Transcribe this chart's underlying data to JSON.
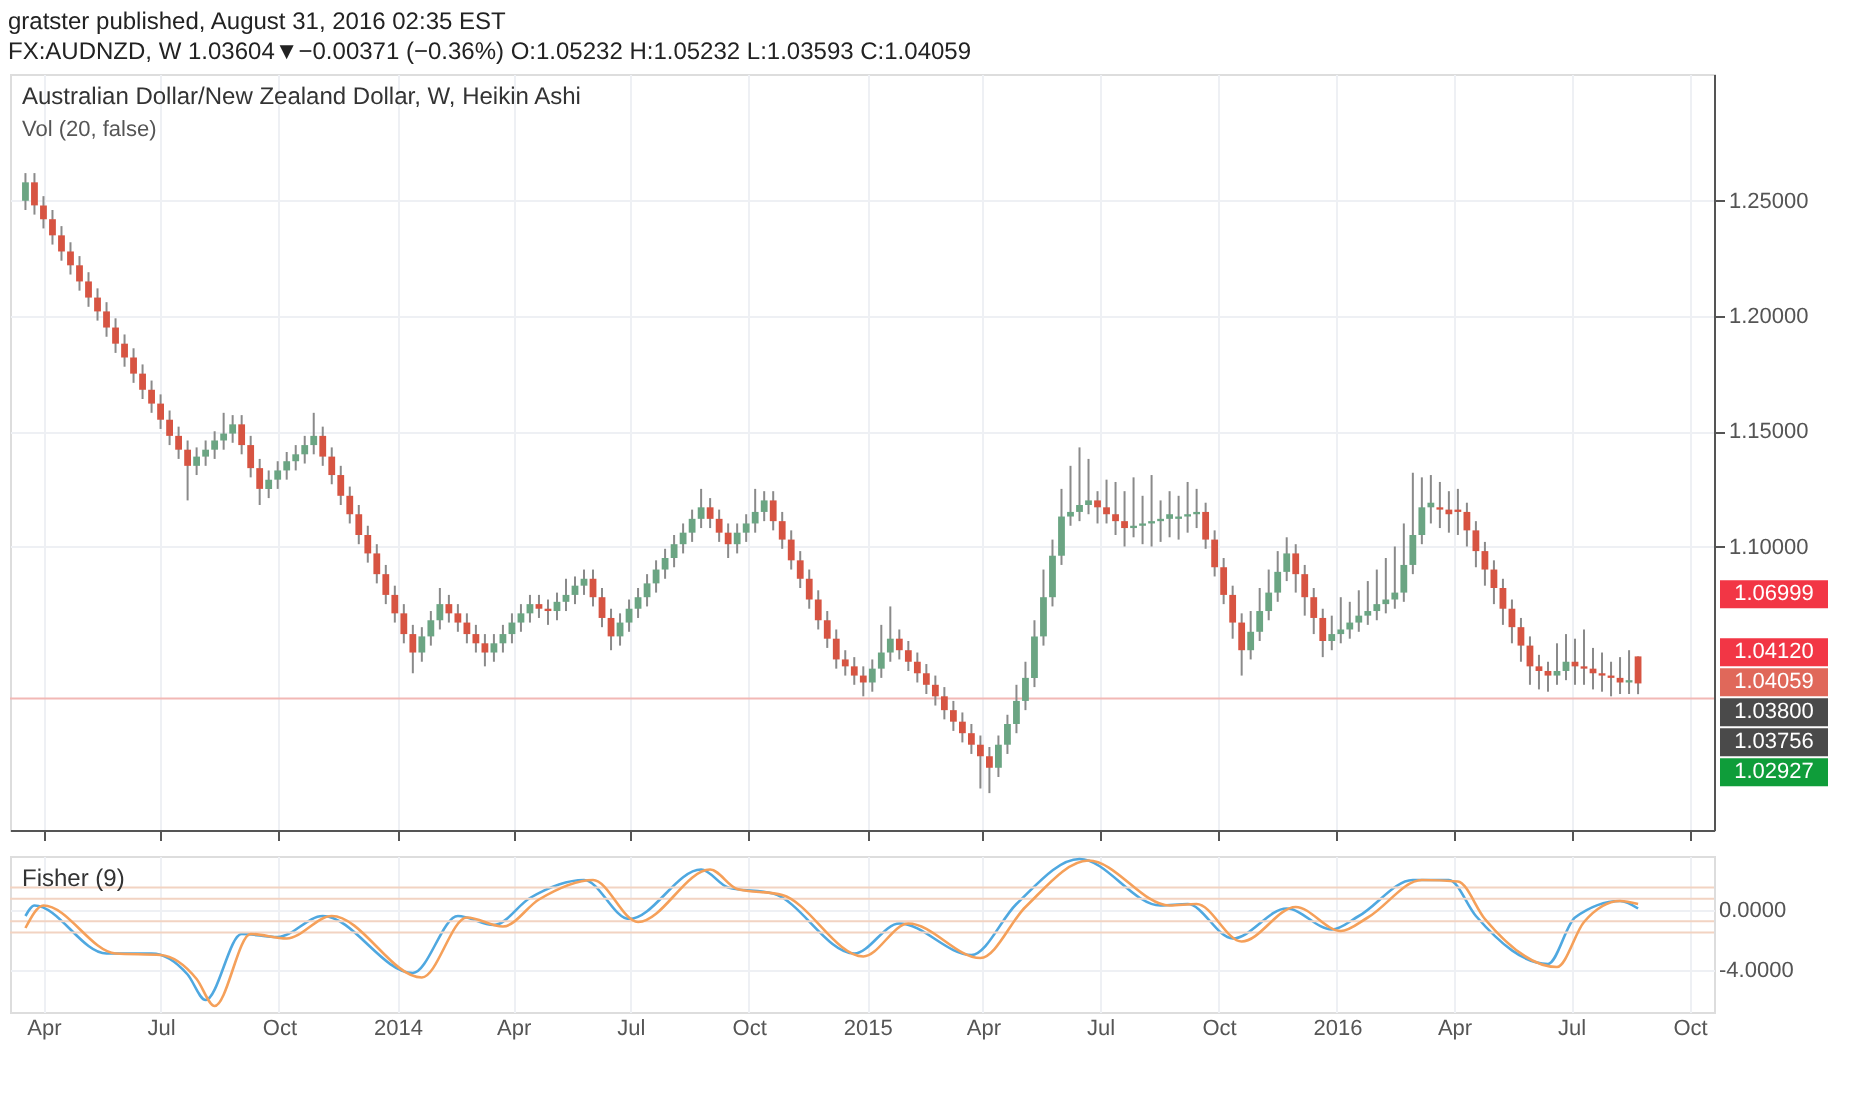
{
  "chart_data": [
    {
      "type": "candlestick",
      "title": "Australian Dollar/New Zealand Dollar, W, Heikin Ashi",
      "annotations": [
        "gratster published, August 31, 2016 02:35 EST",
        "FX:AUDNZD, W 1.03604▼−0.00371 (−0.36%) O:1.05232 H:1.05232 L:1.03593 C:1.04059",
        "Vol (20, false)",
        "1.06999",
        "1.04120",
        "1.04059",
        "1.03800",
        "1.03756",
        "1.02927"
      ],
      "x": [
        "2013-03-18",
        "2013-03-25",
        "2013-04-01",
        "2013-04-08",
        "2013-04-15",
        "2013-04-22",
        "2013-04-29",
        "2013-05-06",
        "2013-05-13",
        "2013-05-20",
        "2013-05-27",
        "2013-06-03",
        "2013-06-10",
        "2013-06-17",
        "2013-06-24",
        "2013-07-01",
        "2013-07-08",
        "2013-07-15",
        "2013-07-22",
        "2013-07-29",
        "2013-08-05",
        "2013-08-12",
        "2013-08-19",
        "2013-08-26",
        "2013-09-02",
        "2013-09-09",
        "2013-09-16",
        "2013-09-23",
        "2013-09-30",
        "2013-10-07",
        "2013-10-14",
        "2013-10-21",
        "2013-10-28",
        "2013-11-04",
        "2013-11-11",
        "2013-11-18",
        "2013-11-25",
        "2013-12-02",
        "2013-12-09",
        "2013-12-16",
        "2013-12-23",
        "2013-12-30",
        "2014-01-06",
        "2014-01-13",
        "2014-01-20",
        "2014-01-27",
        "2014-02-03",
        "2014-02-10",
        "2014-02-17",
        "2014-02-24",
        "2014-03-03",
        "2014-03-10",
        "2014-03-17",
        "2014-03-24",
        "2014-03-31",
        "2014-04-07",
        "2014-04-14",
        "2014-04-21",
        "2014-04-28",
        "2014-05-05",
        "2014-05-12",
        "2014-05-19",
        "2014-05-26",
        "2014-06-02",
        "2014-06-09",
        "2014-06-16",
        "2014-06-23",
        "2014-06-30",
        "2014-07-07",
        "2014-07-14",
        "2014-07-21",
        "2014-07-28",
        "2014-08-04",
        "2014-08-11",
        "2014-08-18",
        "2014-08-25",
        "2014-09-01",
        "2014-09-08",
        "2014-09-15",
        "2014-09-22",
        "2014-09-29",
        "2014-10-06",
        "2014-10-13",
        "2014-10-20",
        "2014-10-27",
        "2014-11-03",
        "2014-11-10",
        "2014-11-17",
        "2014-11-24",
        "2014-12-01",
        "2014-12-08",
        "2014-12-15",
        "2014-12-22",
        "2014-12-29",
        "2015-01-05",
        "2015-01-12",
        "2015-01-19",
        "2015-01-26",
        "2015-02-02",
        "2015-02-09",
        "2015-02-16",
        "2015-02-23",
        "2015-03-02",
        "2015-03-09",
        "2015-03-16",
        "2015-03-23",
        "2015-03-30",
        "2015-04-06",
        "2015-04-13",
        "2015-04-20",
        "2015-04-27",
        "2015-05-04",
        "2015-05-11",
        "2015-05-18",
        "2015-05-25",
        "2015-06-01",
        "2015-06-08",
        "2015-06-15",
        "2015-06-22",
        "2015-06-29",
        "2015-07-06",
        "2015-07-13",
        "2015-07-20",
        "2015-07-27",
        "2015-08-03",
        "2015-08-10",
        "2015-08-17",
        "2015-08-24",
        "2015-08-31",
        "2015-09-07",
        "2015-09-14",
        "2015-09-21",
        "2015-09-28",
        "2015-10-05",
        "2015-10-12",
        "2015-10-19",
        "2015-10-26",
        "2015-11-02",
        "2015-11-09",
        "2015-11-16",
        "2015-11-23",
        "2015-11-30",
        "2015-12-07",
        "2015-12-14",
        "2015-12-21",
        "2015-12-28",
        "2016-01-04",
        "2016-01-11",
        "2016-01-18",
        "2016-01-25",
        "2016-02-01",
        "2016-02-08",
        "2016-02-15",
        "2016-02-22",
        "2016-02-29",
        "2016-03-07",
        "2016-03-14",
        "2016-03-21",
        "2016-03-28",
        "2016-04-04",
        "2016-04-11",
        "2016-04-18",
        "2016-04-25",
        "2016-05-02",
        "2016-05-09",
        "2016-05-16",
        "2016-05-23",
        "2016-05-30",
        "2016-06-06",
        "2016-06-13",
        "2016-06-20",
        "2016-06-27",
        "2016-07-04",
        "2016-07-11",
        "2016-07-18",
        "2016-07-25",
        "2016-08-01",
        "2016-08-08",
        "2016-08-15",
        "2016-08-22"
      ],
      "ohlc": [
        [
          1.25,
          1.262,
          1.246,
          1.258
        ],
        [
          1.258,
          1.262,
          1.244,
          1.248
        ],
        [
          1.248,
          1.252,
          1.238,
          1.242
        ],
        [
          1.242,
          1.246,
          1.231,
          1.235
        ],
        [
          1.235,
          1.239,
          1.224,
          1.228
        ],
        [
          1.228,
          1.232,
          1.218,
          1.222
        ],
        [
          1.222,
          1.226,
          1.211,
          1.215
        ],
        [
          1.215,
          1.219,
          1.204,
          1.208
        ],
        [
          1.208,
          1.212,
          1.198,
          1.202
        ],
        [
          1.202,
          1.206,
          1.191,
          1.195
        ],
        [
          1.195,
          1.199,
          1.184,
          1.188
        ],
        [
          1.188,
          1.192,
          1.178,
          1.182
        ],
        [
          1.182,
          1.186,
          1.171,
          1.175
        ],
        [
          1.175,
          1.179,
          1.164,
          1.168
        ],
        [
          1.168,
          1.172,
          1.158,
          1.162
        ],
        [
          1.162,
          1.166,
          1.151,
          1.155
        ],
        [
          1.155,
          1.159,
          1.144,
          1.148
        ],
        [
          1.148,
          1.152,
          1.138,
          1.142
        ],
        [
          1.142,
          1.146,
          1.12,
          1.135
        ],
        [
          1.135,
          1.143,
          1.131,
          1.139
        ],
        [
          1.139,
          1.146,
          1.135,
          1.142
        ],
        [
          1.142,
          1.15,
          1.138,
          1.146
        ],
        [
          1.146,
          1.158,
          1.142,
          1.149
        ],
        [
          1.149,
          1.157,
          1.145,
          1.153
        ],
        [
          1.153,
          1.157,
          1.14,
          1.144
        ],
        [
          1.144,
          1.148,
          1.13,
          1.134
        ],
        [
          1.134,
          1.138,
          1.118,
          1.125
        ],
        [
          1.125,
          1.133,
          1.121,
          1.129
        ],
        [
          1.129,
          1.137,
          1.125,
          1.133
        ],
        [
          1.133,
          1.141,
          1.129,
          1.137
        ],
        [
          1.137,
          1.144,
          1.133,
          1.14
        ],
        [
          1.14,
          1.148,
          1.136,
          1.144
        ],
        [
          1.144,
          1.158,
          1.14,
          1.148
        ],
        [
          1.148,
          1.152,
          1.135,
          1.139
        ],
        [
          1.139,
          1.143,
          1.127,
          1.131
        ],
        [
          1.131,
          1.135,
          1.118,
          1.122
        ],
        [
          1.122,
          1.126,
          1.11,
          1.114
        ],
        [
          1.114,
          1.118,
          1.101,
          1.105
        ],
        [
          1.105,
          1.109,
          1.093,
          1.097
        ],
        [
          1.097,
          1.101,
          1.084,
          1.088
        ],
        [
          1.088,
          1.092,
          1.075,
          1.079
        ],
        [
          1.079,
          1.083,
          1.067,
          1.071
        ],
        [
          1.071,
          1.075,
          1.058,
          1.062
        ],
        [
          1.062,
          1.066,
          1.045,
          1.054
        ],
        [
          1.054,
          1.065,
          1.05,
          1.061
        ],
        [
          1.061,
          1.072,
          1.057,
          1.068
        ],
        [
          1.068,
          1.082,
          1.064,
          1.075
        ],
        [
          1.075,
          1.079,
          1.067,
          1.071
        ],
        [
          1.071,
          1.075,
          1.063,
          1.067
        ],
        [
          1.067,
          1.071,
          1.058,
          1.062
        ],
        [
          1.062,
          1.066,
          1.054,
          1.058
        ],
        [
          1.058,
          1.062,
          1.048,
          1.054
        ],
        [
          1.054,
          1.062,
          1.05,
          1.058
        ],
        [
          1.058,
          1.066,
          1.054,
          1.062
        ],
        [
          1.062,
          1.071,
          1.058,
          1.067
        ],
        [
          1.067,
          1.075,
          1.063,
          1.071
        ],
        [
          1.071,
          1.079,
          1.067,
          1.075
        ],
        [
          1.075,
          1.079,
          1.069,
          1.073
        ],
        [
          1.073,
          1.077,
          1.066,
          1.072
        ],
        [
          1.072,
          1.08,
          1.068,
          1.076
        ],
        [
          1.076,
          1.086,
          1.072,
          1.079
        ],
        [
          1.079,
          1.087,
          1.075,
          1.083
        ],
        [
          1.083,
          1.09,
          1.079,
          1.086
        ],
        [
          1.086,
          1.09,
          1.074,
          1.078
        ],
        [
          1.078,
          1.082,
          1.065,
          1.069
        ],
        [
          1.069,
          1.073,
          1.055,
          1.061
        ],
        [
          1.061,
          1.071,
          1.057,
          1.067
        ],
        [
          1.067,
          1.077,
          1.063,
          1.073
        ],
        [
          1.073,
          1.082,
          1.069,
          1.078
        ],
        [
          1.078,
          1.088,
          1.074,
          1.084
        ],
        [
          1.084,
          1.094,
          1.08,
          1.09
        ],
        [
          1.09,
          1.099,
          1.086,
          1.095
        ],
        [
          1.095,
          1.105,
          1.091,
          1.101
        ],
        [
          1.101,
          1.11,
          1.097,
          1.106
        ],
        [
          1.106,
          1.116,
          1.102,
          1.112
        ],
        [
          1.112,
          1.125,
          1.108,
          1.117
        ],
        [
          1.117,
          1.121,
          1.108,
          1.112
        ],
        [
          1.112,
          1.116,
          1.102,
          1.106
        ],
        [
          1.106,
          1.11,
          1.095,
          1.101
        ],
        [
          1.101,
          1.11,
          1.097,
          1.106
        ],
        [
          1.106,
          1.114,
          1.102,
          1.11
        ],
        [
          1.11,
          1.125,
          1.106,
          1.115
        ],
        [
          1.115,
          1.124,
          1.111,
          1.12
        ],
        [
          1.12,
          1.124,
          1.107,
          1.111
        ],
        [
          1.111,
          1.115,
          1.099,
          1.103
        ],
        [
          1.103,
          1.107,
          1.09,
          1.094
        ],
        [
          1.094,
          1.098,
          1.082,
          1.086
        ],
        [
          1.086,
          1.09,
          1.073,
          1.077
        ],
        [
          1.077,
          1.081,
          1.064,
          1.068
        ],
        [
          1.068,
          1.072,
          1.056,
          1.06
        ],
        [
          1.06,
          1.064,
          1.047,
          1.051
        ],
        [
          1.051,
          1.055,
          1.044,
          1.048
        ],
        [
          1.048,
          1.052,
          1.04,
          1.044
        ],
        [
          1.044,
          1.048,
          1.035,
          1.041
        ],
        [
          1.041,
          1.051,
          1.037,
          1.047
        ],
        [
          1.047,
          1.066,
          1.043,
          1.054
        ],
        [
          1.054,
          1.074,
          1.05,
          1.06
        ],
        [
          1.06,
          1.064,
          1.051,
          1.055
        ],
        [
          1.055,
          1.059,
          1.046,
          1.05
        ],
        [
          1.05,
          1.054,
          1.041,
          1.045
        ],
        [
          1.045,
          1.049,
          1.036,
          1.04
        ],
        [
          1.04,
          1.044,
          1.031,
          1.035
        ],
        [
          1.035,
          1.039,
          1.025,
          1.029
        ],
        [
          1.029,
          1.033,
          1.02,
          1.024
        ],
        [
          1.024,
          1.028,
          1.015,
          1.019
        ],
        [
          1.019,
          1.023,
          1.01,
          1.014
        ],
        [
          1.014,
          1.018,
          0.995,
          1.009
        ],
        [
          1.009,
          1.013,
          0.993,
          1.004
        ],
        [
          1.004,
          1.018,
          1.0,
          1.014
        ],
        [
          1.014,
          1.027,
          1.01,
          1.023
        ],
        [
          1.023,
          1.04,
          1.019,
          1.033
        ],
        [
          1.033,
          1.05,
          1.029,
          1.043
        ],
        [
          1.043,
          1.068,
          1.039,
          1.061
        ],
        [
          1.061,
          1.09,
          1.057,
          1.078
        ],
        [
          1.078,
          1.103,
          1.074,
          1.096
        ],
        [
          1.096,
          1.125,
          1.092,
          1.113
        ],
        [
          1.113,
          1.135,
          1.109,
          1.115
        ],
        [
          1.115,
          1.143,
          1.111,
          1.118
        ],
        [
          1.118,
          1.138,
          1.114,
          1.12
        ],
        [
          1.12,
          1.124,
          1.11,
          1.117
        ],
        [
          1.117,
          1.129,
          1.11,
          1.114
        ],
        [
          1.114,
          1.128,
          1.105,
          1.111
        ],
        [
          1.111,
          1.124,
          1.1,
          1.108
        ],
        [
          1.108,
          1.13,
          1.104,
          1.109
        ],
        [
          1.109,
          1.122,
          1.101,
          1.11
        ],
        [
          1.11,
          1.131,
          1.1,
          1.111
        ],
        [
          1.111,
          1.12,
          1.102,
          1.112
        ],
        [
          1.112,
          1.124,
          1.104,
          1.114
        ],
        [
          1.112,
          1.122,
          1.103,
          1.113
        ],
        [
          1.113,
          1.128,
          1.106,
          1.114
        ],
        [
          1.114,
          1.125,
          1.108,
          1.115
        ],
        [
          1.115,
          1.119,
          1.099,
          1.103
        ],
        [
          1.103,
          1.107,
          1.087,
          1.091
        ],
        [
          1.091,
          1.095,
          1.075,
          1.079
        ],
        [
          1.079,
          1.083,
          1.06,
          1.067
        ],
        [
          1.067,
          1.071,
          1.044,
          1.055
        ],
        [
          1.055,
          1.072,
          1.051,
          1.063
        ],
        [
          1.063,
          1.082,
          1.059,
          1.072
        ],
        [
          1.072,
          1.09,
          1.068,
          1.08
        ],
        [
          1.08,
          1.098,
          1.076,
          1.089
        ],
        [
          1.089,
          1.104,
          1.085,
          1.097
        ],
        [
          1.097,
          1.101,
          1.08,
          1.088
        ],
        [
          1.088,
          1.092,
          1.07,
          1.078
        ],
        [
          1.078,
          1.082,
          1.062,
          1.069
        ],
        [
          1.069,
          1.073,
          1.052,
          1.059
        ],
        [
          1.059,
          1.07,
          1.055,
          1.062
        ],
        [
          1.062,
          1.078,
          1.058,
          1.064
        ],
        [
          1.064,
          1.076,
          1.06,
          1.067
        ],
        [
          1.067,
          1.081,
          1.063,
          1.07
        ],
        [
          1.07,
          1.085,
          1.066,
          1.072
        ],
        [
          1.072,
          1.09,
          1.068,
          1.075
        ],
        [
          1.075,
          1.095,
          1.071,
          1.077
        ],
        [
          1.077,
          1.1,
          1.073,
          1.08
        ],
        [
          1.08,
          1.11,
          1.076,
          1.092
        ],
        [
          1.092,
          1.132,
          1.088,
          1.105
        ],
        [
          1.105,
          1.13,
          1.101,
          1.117
        ],
        [
          1.117,
          1.131,
          1.11,
          1.119
        ],
        [
          1.117,
          1.128,
          1.108,
          1.116
        ],
        [
          1.116,
          1.124,
          1.106,
          1.114
        ],
        [
          1.116,
          1.125,
          1.105,
          1.115
        ],
        [
          1.115,
          1.119,
          1.1,
          1.107
        ],
        [
          1.107,
          1.111,
          1.091,
          1.098
        ],
        [
          1.098,
          1.102,
          1.083,
          1.09
        ],
        [
          1.09,
          1.094,
          1.075,
          1.082
        ],
        [
          1.082,
          1.086,
          1.066,
          1.073
        ],
        [
          1.073,
          1.077,
          1.058,
          1.065
        ],
        [
          1.065,
          1.069,
          1.05,
          1.057
        ],
        [
          1.057,
          1.061,
          1.04,
          1.048
        ],
        [
          1.048,
          1.053,
          1.038,
          1.046
        ],
        [
          1.046,
          1.05,
          1.037,
          1.044
        ],
        [
          1.044,
          1.058,
          1.04,
          1.046
        ],
        [
          1.046,
          1.062,
          1.042,
          1.05
        ],
        [
          1.05,
          1.06,
          1.04,
          1.048
        ],
        [
          1.048,
          1.064,
          1.04,
          1.047
        ],
        [
          1.047,
          1.056,
          1.038,
          1.045
        ],
        [
          1.045,
          1.054,
          1.037,
          1.044
        ],
        [
          1.044,
          1.05,
          1.035,
          1.043
        ],
        [
          1.043,
          1.052,
          1.036,
          1.041
        ],
        [
          1.041,
          1.055,
          1.036,
          1.042
        ],
        [
          1.05232,
          1.05232,
          1.03593,
          1.04059
        ]
      ],
      "xlim": [
        "2013-03-06",
        "2016-10-20"
      ],
      "xticks": [
        {
          "value": "2013-04-01",
          "label": null
        },
        {
          "value": "2013-07-01",
          "label": null
        },
        {
          "value": "2013-10-01",
          "label": null
        },
        {
          "value": "2014-01-01",
          "label": null
        },
        {
          "value": "2014-04-01",
          "label": null
        },
        {
          "value": "2014-07-01",
          "label": null
        },
        {
          "value": "2014-10-01",
          "label": null
        },
        {
          "value": "2015-01-01",
          "label": null
        },
        {
          "value": "2015-04-01",
          "label": null
        },
        {
          "value": "2015-07-01",
          "label": null
        },
        {
          "value": "2015-10-01",
          "label": null
        },
        {
          "value": "2016-01-01",
          "label": null
        },
        {
          "value": "2016-04-01",
          "label": null
        },
        {
          "value": "2016-07-01",
          "label": null
        },
        {
          "value": "2016-10-01",
          "label": null
        }
      ],
      "ylim": [
        0.977,
        1.305
      ],
      "yticks": [
        {
          "value": 1.1,
          "label": "1.10000"
        },
        {
          "value": 1.15,
          "label": "1.15000"
        },
        {
          "value": 1.2,
          "label": "1.20000"
        },
        {
          "value": 1.25,
          "label": "1.25000"
        }
      ],
      "ref_lines": [
        {
          "axis": "y",
          "value": 1.034,
          "color": "#f2b8b5"
        }
      ],
      "grid": true,
      "tick_labels": "y"
    },
    {
      "type": "line",
      "title": "Fisher (9)",
      "series": [
        {
          "color": "#4fa8e0",
          "x": [
            "2013-03-18",
            "2013-03-25",
            "2013-05-20",
            "2013-06-24",
            "2013-07-22",
            "2013-08-05",
            "2013-09-02",
            "2013-09-30",
            "2013-11-04",
            "2014-01-13",
            "2014-02-17",
            "2014-03-17",
            "2014-04-14",
            "2014-05-26",
            "2014-06-30",
            "2014-08-25",
            "2014-09-15",
            "2014-10-20",
            "2014-12-22",
            "2015-01-26",
            "2015-03-23",
            "2015-04-27",
            "2015-06-15",
            "2015-08-17",
            "2015-09-07",
            "2015-10-12",
            "2015-11-23",
            "2015-12-28",
            "2016-01-18",
            "2016-02-29",
            "2016-03-28",
            "2016-04-18",
            "2016-06-13",
            "2016-07-04",
            "2016-08-08",
            "2016-08-22"
          ],
          "values": [
            -0.4,
            0.3,
            -2.9,
            -2.9,
            -4.3,
            -6.0,
            -1.6,
            -1.8,
            -0.4,
            -4.2,
            -0.4,
            -1.0,
            0.8,
            2.0,
            -0.6,
            2.7,
            1.5,
            1.1,
            -2.9,
            -0.9,
            -3.0,
            0.4,
            3.4,
            0.3,
            0.4,
            -1.9,
            0.1,
            -1.3,
            -0.4,
            2.0,
            2.0,
            -0.4,
            -3.6,
            -0.5,
            0.6,
            0.1
          ]
        },
        {
          "color": "#f5a05a",
          "x": [
            "2013-03-18",
            "2013-04-01",
            "2013-05-27",
            "2013-07-01",
            "2013-07-29",
            "2013-08-12",
            "2013-09-09",
            "2013-10-07",
            "2013-11-11",
            "2014-01-20",
            "2014-02-24",
            "2014-03-24",
            "2014-04-21",
            "2014-06-02",
            "2014-07-07",
            "2014-09-01",
            "2014-09-22",
            "2014-10-27",
            "2014-12-29",
            "2015-02-02",
            "2015-03-30",
            "2015-05-04",
            "2015-06-22",
            "2015-08-24",
            "2015-09-14",
            "2015-10-19",
            "2015-11-30",
            "2016-01-04",
            "2016-01-25",
            "2016-03-07",
            "2016-04-04",
            "2016-04-25",
            "2016-06-20",
            "2016-07-11",
            "2016-08-08",
            "2016-08-22"
          ],
          "values": [
            -1.2,
            0.3,
            -2.9,
            -3.0,
            -4.6,
            -6.4,
            -1.6,
            -1.9,
            -0.4,
            -4.5,
            -0.5,
            -1.1,
            0.7,
            2.0,
            -0.8,
            2.7,
            1.4,
            1.0,
            -3.1,
            -0.9,
            -3.2,
            0.2,
            3.3,
            0.3,
            0.4,
            -2.1,
            0.2,
            -1.4,
            -0.5,
            2.0,
            1.9,
            -0.6,
            -3.8,
            -0.8,
            0.6,
            0.4
          ]
        }
      ],
      "xlim": [
        "2013-03-06",
        "2016-10-20"
      ],
      "xticks": [
        {
          "value": "2013-04-01",
          "label": "Apr"
        },
        {
          "value": "2013-07-01",
          "label": "Jul"
        },
        {
          "value": "2013-10-01",
          "label": "Oct"
        },
        {
          "value": "2014-01-01",
          "label": "2014"
        },
        {
          "value": "2014-04-01",
          "label": "Apr"
        },
        {
          "value": "2014-07-01",
          "label": "Jul"
        },
        {
          "value": "2014-10-01",
          "label": "Oct"
        },
        {
          "value": "2015-01-01",
          "label": "2015"
        },
        {
          "value": "2015-04-01",
          "label": "Apr"
        },
        {
          "value": "2015-07-01",
          "label": "Jul"
        },
        {
          "value": "2015-10-01",
          "label": "Oct"
        },
        {
          "value": "2016-01-01",
          "label": "2016"
        },
        {
          "value": "2016-04-01",
          "label": "Apr"
        },
        {
          "value": "2016-07-01",
          "label": "Jul"
        },
        {
          "value": "2016-10-01",
          "label": "Oct"
        }
      ],
      "ylim": [
        -6.8,
        3.6
      ],
      "yticks": [
        {
          "value": -4,
          "label": "-4.0000"
        },
        {
          "value": 0,
          "label": "0.0000"
        }
      ],
      "ref_lines": [
        {
          "axis": "y",
          "value": 1.5,
          "color": "#f2d3c2"
        },
        {
          "axis": "y",
          "value": 0.75,
          "color": "#f2d3c2"
        },
        {
          "axis": "y",
          "value": -0.75,
          "color": "#f2d3c2"
        },
        {
          "axis": "y",
          "value": -1.5,
          "color": "#f2d3c2"
        }
      ],
      "grid": true,
      "line_style": "solid"
    }
  ]
}
